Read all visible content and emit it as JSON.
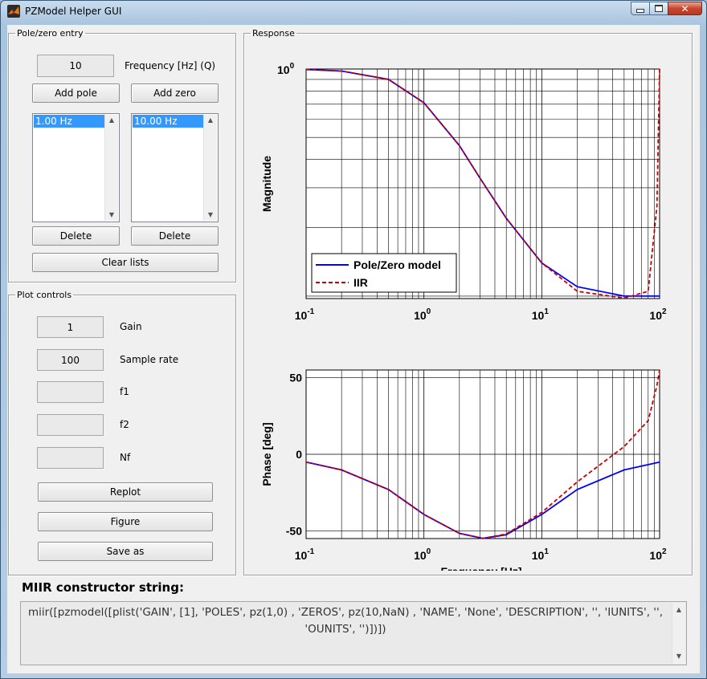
{
  "window": {
    "title": "PZModel Helper GUI",
    "icon": "matlab-icon",
    "controls": [
      "minimize-icon",
      "maximize-icon",
      "close-icon"
    ]
  },
  "pole_zero_entry": {
    "legend": "Pole/zero entry",
    "frequency_value": "10",
    "frequency_label": "Frequency [Hz] (Q)",
    "add_pole_label": "Add pole",
    "add_zero_label": "Add zero",
    "poles": [
      "1.00 Hz"
    ],
    "zeros": [
      "10.00 Hz"
    ],
    "delete_pole_label": "Delete",
    "delete_zero_label": "Delete",
    "clear_label": "Clear lists"
  },
  "plot_controls": {
    "legend": "Plot controls",
    "gain_value": "1",
    "gain_label": "Gain",
    "sample_rate_value": "100",
    "sample_rate_label": "Sample rate",
    "f1_value": "",
    "f1_label": "f1",
    "f2_value": "",
    "f2_label": "f2",
    "nf_value": "",
    "nf_label": "Nf",
    "replot_label": "Replot",
    "figure_label": "Figure",
    "save_label": "Save as"
  },
  "response": {
    "legend": "Response"
  },
  "miir": {
    "heading": "MIIR constructor string:",
    "text": "miir([pzmodel([plist('GAIN', [1], 'POLES', pz(1,0) , 'ZEROS', pz(10,NaN) , 'NAME', 'None', 'DESCRIPTION', '', 'IUNITS', '', 'OUNITS', '')])])"
  },
  "chart_data": [
    {
      "type": "line",
      "panel": "magnitude",
      "ylabel": "Magnitude",
      "xscale": "log",
      "yscale": "log",
      "xlim": [
        0.1,
        100
      ],
      "x_tick_labels": [
        "10-1",
        "100",
        "101",
        "102"
      ],
      "y_tick_labels": [
        "100"
      ],
      "grid": true,
      "legend_position": "bottom-left",
      "series": [
        {
          "name": "Pole/Zero model",
          "color": "#0000ff",
          "style": "solid",
          "x": [
            0.1,
            0.2,
            0.5,
            1,
            2,
            3,
            5,
            10,
            20,
            50,
            100
          ],
          "y": [
            0.995,
            0.98,
            0.9,
            0.71,
            0.46,
            0.33,
            0.22,
            0.14,
            0.11,
            0.1,
            0.1
          ]
        },
        {
          "name": "IIR",
          "color": "#cc0000",
          "style": "dashed",
          "x": [
            0.1,
            0.2,
            0.5,
            1,
            2,
            3,
            5,
            10,
            20,
            50,
            80,
            95,
            100
          ],
          "y": [
            0.995,
            0.98,
            0.9,
            0.71,
            0.46,
            0.33,
            0.22,
            0.14,
            0.105,
            0.098,
            0.105,
            0.25,
            1.0
          ]
        }
      ]
    },
    {
      "type": "line",
      "panel": "phase",
      "xlabel": "Frequency [Hz]",
      "ylabel": "Phase [deg]",
      "xscale": "log",
      "xlim": [
        0.1,
        100
      ],
      "ylim": [
        -55,
        55
      ],
      "x_tick_labels": [
        "10-1",
        "100",
        "101",
        "102"
      ],
      "y_tick_labels": [
        "50",
        "0",
        "-50"
      ],
      "grid": true,
      "series": [
        {
          "name": "Pole/Zero model",
          "color": "#0000ff",
          "style": "solid",
          "x": [
            0.1,
            0.2,
            0.5,
            1,
            2,
            3.16,
            5,
            10,
            20,
            50,
            100
          ],
          "y": [
            -5.1,
            -10.2,
            -23.0,
            -39.3,
            -51.6,
            -54.9,
            -52.5,
            -39.3,
            -23.0,
            -10.2,
            -5.1
          ]
        },
        {
          "name": "IIR",
          "color": "#cc0000",
          "style": "dashed",
          "x": [
            0.1,
            0.2,
            0.5,
            1,
            2,
            3.16,
            5,
            10,
            20,
            50,
            80,
            95,
            100
          ],
          "y": [
            -5.1,
            -10.2,
            -23.0,
            -39.3,
            -51.6,
            -54.9,
            -52.0,
            -38.0,
            -18.0,
            5.0,
            22.0,
            45.0,
            55.0
          ]
        }
      ]
    }
  ]
}
